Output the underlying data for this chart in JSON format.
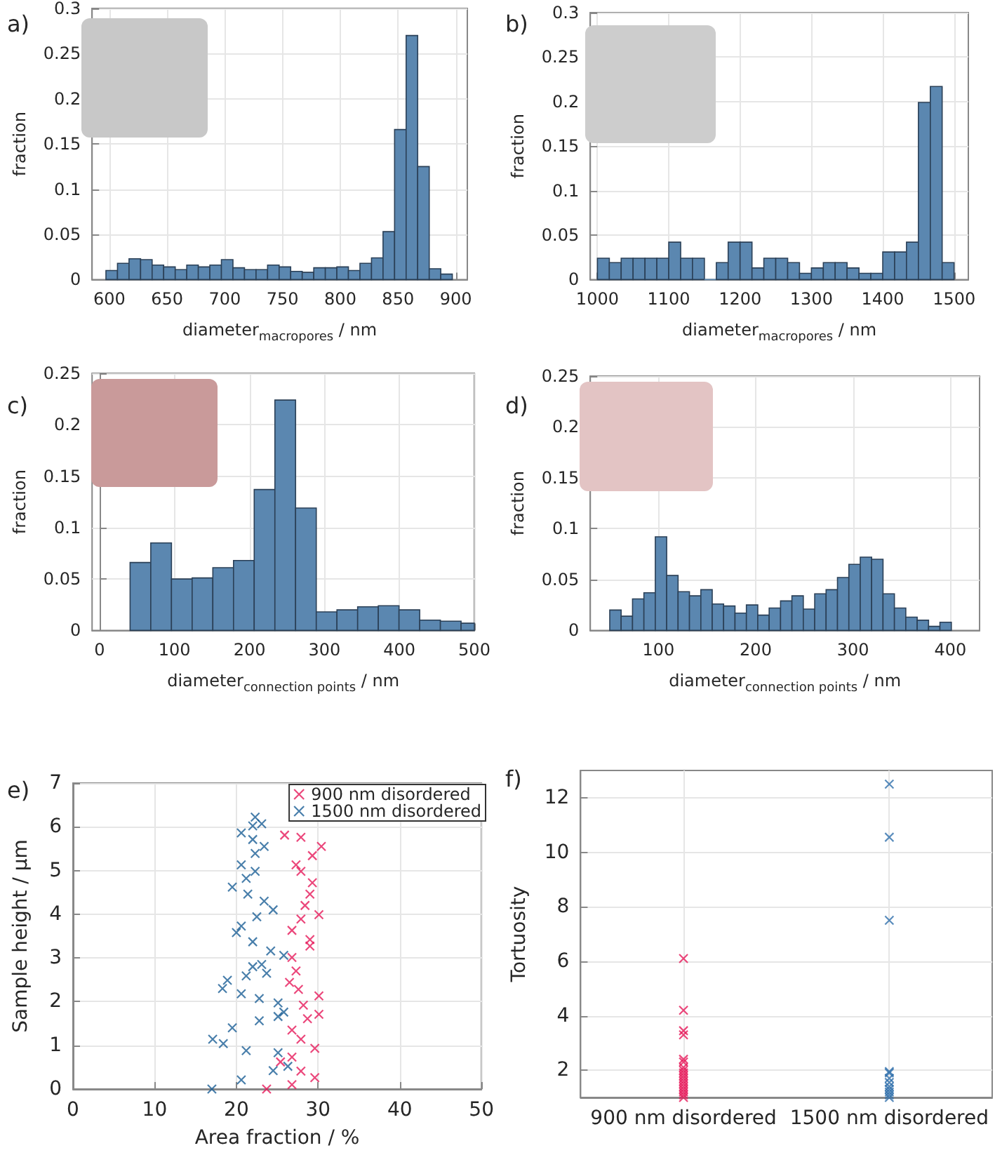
{
  "chart_data": [
    {
      "type": "histogram",
      "title": "a)",
      "xlabel": "diameter$_{macropores}$ / nm",
      "ylabel": "fraction",
      "color": "#5b87b0",
      "grid": true,
      "bins": [
        597,
        607,
        617,
        627,
        637,
        647,
        657,
        667,
        677,
        687,
        697,
        707,
        717,
        727,
        737,
        747,
        757,
        767,
        777,
        787,
        797,
        807,
        817,
        827,
        837,
        847,
        857,
        867,
        877,
        887,
        897
      ],
      "values": [
        0.01,
        0.018,
        0.023,
        0.022,
        0.016,
        0.014,
        0.011,
        0.016,
        0.014,
        0.016,
        0.022,
        0.013,
        0.011,
        0.011,
        0.016,
        0.014,
        0.009,
        0.008,
        0.013,
        0.013,
        0.014,
        0.01,
        0.018,
        0.024,
        0.053,
        0.166,
        0.27,
        0.125,
        0.012,
        0.006
      ],
      "xlim": [
        585,
        910
      ],
      "xticks": [
        600,
        650,
        700,
        750,
        800,
        850,
        900
      ],
      "ylim": [
        0,
        0.3
      ],
      "yticks": [
        0,
        0.05,
        0.1,
        0.15,
        0.2,
        0.25,
        0.3
      ]
    },
    {
      "type": "histogram",
      "title": "b)",
      "xlabel": "diameter$_{macropores}$ / nm",
      "ylabel": "fraction",
      "color": "#5b87b0",
      "grid": true,
      "bins": [
        1000,
        1016.7,
        1033.3,
        1050,
        1066.7,
        1083.3,
        1100,
        1116.7,
        1133.3,
        1150,
        1166.7,
        1183.3,
        1200,
        1216.7,
        1233.3,
        1250,
        1266.7,
        1283.3,
        1300,
        1316.7,
        1333.3,
        1350,
        1366.7,
        1383.3,
        1400,
        1416.7,
        1433.3,
        1450,
        1466.7,
        1483.3,
        1500
      ],
      "values": [
        0.024,
        0.019,
        0.024,
        0.024,
        0.024,
        0.024,
        0.042,
        0.024,
        0.024,
        0,
        0.019,
        0.042,
        0.042,
        0.013,
        0.024,
        0.024,
        0.019,
        0.007,
        0.013,
        0.019,
        0.019,
        0.013,
        0.007,
        0.007,
        0.031,
        0.031,
        0.042,
        0.199,
        0.217,
        0.019
      ],
      "xlim": [
        990,
        1520
      ],
      "xticks": [
        1000,
        1100,
        1200,
        1300,
        1400,
        1500
      ],
      "ylim": [
        0,
        0.3
      ],
      "yticks": [
        0,
        0.05,
        0.1,
        0.15,
        0.2,
        0.25,
        0.3
      ]
    },
    {
      "type": "histogram",
      "title": "c)",
      "xlabel": "diameter$_{connection points}$ / nm",
      "ylabel": "fraction",
      "color": "#5b87b0",
      "grid": true,
      "bins": [
        40.7,
        68.3,
        95.9,
        123.5,
        151.1,
        178.7,
        206.3,
        233.9,
        261.5,
        289.1,
        316.7,
        344.3,
        371.9,
        399.5,
        427.1,
        454.7,
        482.3,
        500
      ],
      "values": [
        0.066,
        0.085,
        0.05,
        0.051,
        0.061,
        0.068,
        0.137,
        0.224,
        0.119,
        0.018,
        0.02,
        0.023,
        0.024,
        0.02,
        0.01,
        0.009,
        0.007
      ],
      "xlim": [
        -10,
        500
      ],
      "xticks": [
        0,
        100,
        200,
        300,
        400,
        500
      ],
      "ylim": [
        0,
        0.25
      ],
      "yticks": [
        0,
        0.05,
        0.1,
        0.15,
        0.2,
        0.25
      ]
    },
    {
      "type": "histogram",
      "title": "d)",
      "xlabel": "diameter$_{connection points}$ / nm",
      "ylabel": "fraction",
      "color": "#5b87b0",
      "grid": true,
      "bins": [
        50,
        61.7,
        73.4,
        85.1,
        96.8,
        108.5,
        120.2,
        131.9,
        143.6,
        155.3,
        167,
        178.7,
        190.4,
        202.1,
        213.8,
        225.5,
        237.2,
        248.9,
        260.6,
        272.3,
        284,
        295.7,
        307.4,
        319.1,
        330.8,
        342.5,
        354.2,
        365.9,
        377.6,
        389.3,
        401
      ],
      "values": [
        0.02,
        0.014,
        0.031,
        0.037,
        0.092,
        0.054,
        0.038,
        0.034,
        0.04,
        0.026,
        0.024,
        0.017,
        0.025,
        0.015,
        0.022,
        0.029,
        0.034,
        0.021,
        0.036,
        0.04,
        0.052,
        0.065,
        0.072,
        0.07,
        0.036,
        0.022,
        0.013,
        0.01,
        0.004,
        0.008
      ],
      "xlim": [
        30,
        430
      ],
      "xticks": [
        100,
        200,
        300,
        400
      ],
      "ylim": [
        0,
        0.25
      ],
      "yticks": [
        0,
        0.05,
        0.1,
        0.15,
        0.2,
        0.25
      ]
    },
    {
      "type": "scatter",
      "title": "e)",
      "xlabel": "Area fraction / %",
      "ylabel": "Sample height / µm",
      "grid": true,
      "legend": "top right",
      "marker": "cross",
      "series": [
        {
          "name": "900 nm disordered",
          "color": "#e6195a",
          "x": [
            23.7,
            26.8,
            29.6,
            27.9,
            25.4,
            26.8,
            29.6,
            27.9,
            26.8,
            28.7,
            30.1,
            28.2,
            30.1,
            27.6,
            26.5,
            27.3,
            26.8,
            29.0,
            29.0,
            26.8,
            27.9,
            30.1,
            28.4,
            29.0,
            29.3,
            27.9,
            27.3,
            29.3,
            30.4,
            27.9,
            25.9
          ],
          "values": [
            0,
            0.1,
            0.26,
            0.41,
            0.62,
            0.73,
            0.93,
            1.14,
            1.35,
            1.61,
            1.71,
            1.92,
            2.13,
            2.28,
            2.44,
            2.7,
            3.01,
            3.27,
            3.42,
            3.63,
            3.89,
            3.99,
            4.2,
            4.46,
            4.72,
            4.98,
            5.13,
            5.34,
            5.55,
            5.76,
            5.81
          ]
        },
        {
          "name": "1500 nm disordered",
          "color": "#1b5f96",
          "x": [
            17.0,
            20.6,
            24.5,
            26.3,
            25.1,
            21.2,
            18.4,
            17.1,
            19.5,
            22.8,
            25.1,
            25.8,
            25.1,
            22.8,
            20.6,
            18.3,
            18.9,
            21.2,
            23.7,
            22.0,
            23.1,
            25.8,
            24.2,
            22.0,
            20.0,
            20.6,
            22.5,
            24.5,
            23.4,
            21.4,
            19.5,
            21.2,
            22.3,
            20.6,
            22.3,
            23.4,
            22.0,
            20.6,
            22.0,
            23.1,
            22.3
          ],
          "values": [
            0,
            0.21,
            0.42,
            0.52,
            0.83,
            0.88,
            1.04,
            1.14,
            1.4,
            1.56,
            1.66,
            1.76,
            1.97,
            2.07,
            2.18,
            2.3,
            2.49,
            2.59,
            2.65,
            2.8,
            2.85,
            3.06,
            3.16,
            3.37,
            3.58,
            3.73,
            3.94,
            4.1,
            4.3,
            4.46,
            4.62,
            4.82,
            4.98,
            5.13,
            5.39,
            5.55,
            5.71,
            5.86,
            6.02,
            6.07,
            6.22
          ]
        }
      ],
      "xlim": [
        0,
        50
      ],
      "xticks": [
        0,
        10,
        20,
        30,
        40,
        50
      ],
      "ylim": [
        0,
        7
      ],
      "yticks": [
        0,
        1,
        2,
        3,
        4,
        5,
        6,
        7
      ]
    },
    {
      "type": "scatter",
      "title": "f)",
      "ylabel": "Tortuosity",
      "grid": true,
      "marker": "cross",
      "categories": [
        "900 nm disordered",
        "1500 nm disordered"
      ],
      "series": [
        {
          "color": "#e6195a",
          "x": [
            "900 nm disordered",
            "900 nm disordered",
            "900 nm disordered",
            "900 nm disordered",
            "900 nm disordered",
            "900 nm disordered",
            "900 nm disordered",
            "900 nm disordered",
            "900 nm disordered",
            "900 nm disordered",
            "900 nm disordered",
            "900 nm disordered",
            "900 nm disordered",
            "900 nm disordered",
            "900 nm disordered",
            "900 nm disordered",
            "900 nm disordered",
            "900 nm disordered"
          ],
          "values": [
            6.1,
            4.2,
            3.45,
            3.3,
            2.4,
            2.3,
            2.1,
            2.0,
            1.9,
            1.8,
            1.7,
            1.6,
            1.5,
            1.4,
            1.3,
            1.2,
            1.1,
            1.0
          ]
        },
        {
          "color": "#2f6fab",
          "x": [
            "1500 nm disordered",
            "1500 nm disordered",
            "1500 nm disordered",
            "1500 nm disordered",
            "1500 nm disordered",
            "1500 nm disordered",
            "1500 nm disordered",
            "1500 nm disordered",
            "1500 nm disordered",
            "1500 nm disordered",
            "1500 nm disordered",
            "1500 nm disordered"
          ],
          "values": [
            12.5,
            10.55,
            7.5,
            1.95,
            1.9,
            1.7,
            1.55,
            1.4,
            1.3,
            1.2,
            1.1,
            1.0
          ]
        }
      ],
      "ylim": [
        1,
        13
      ],
      "yticks": [
        2,
        4,
        6,
        8,
        10,
        12
      ]
    }
  ]
}
